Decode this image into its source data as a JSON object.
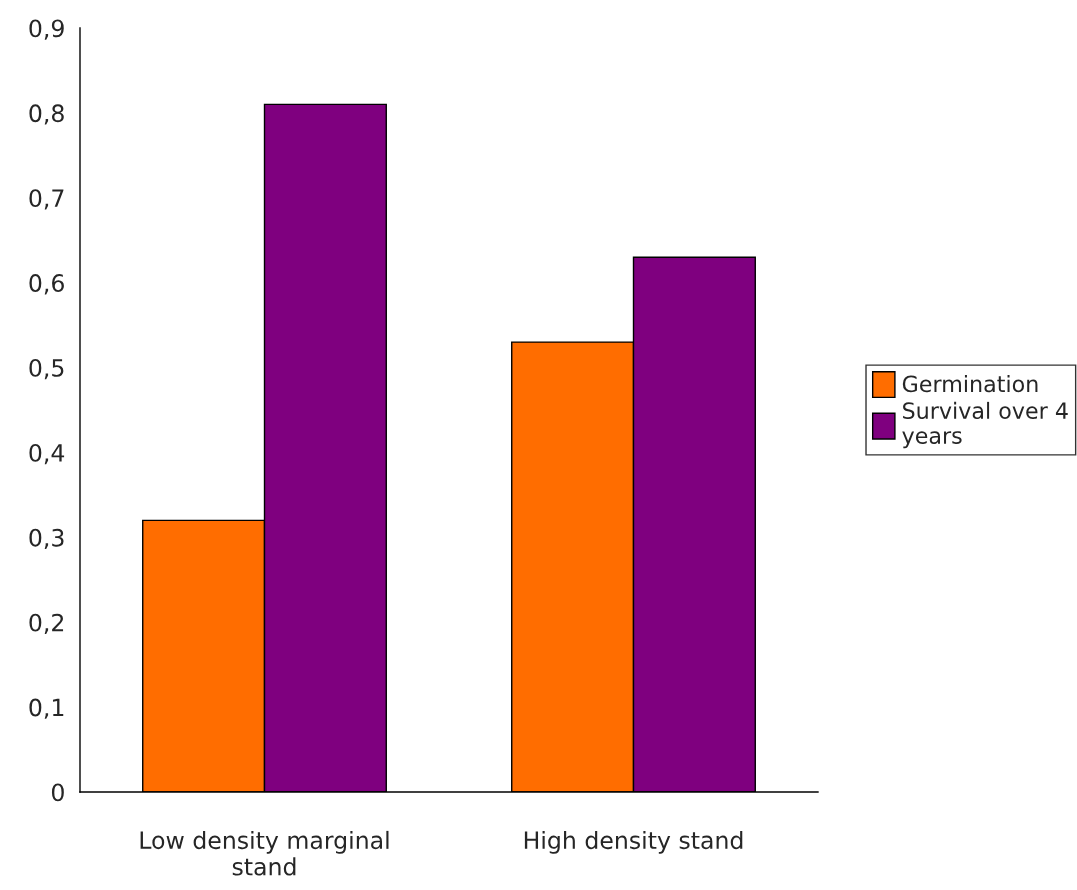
{
  "chart_data": {
    "type": "bar",
    "categories": [
      "Low density marginal stand",
      "High density stand"
    ],
    "series": [
      {
        "name": "Germination",
        "color": "#ff6d00",
        "values": [
          0.32,
          0.53
        ]
      },
      {
        "name": "Survival over 4 years",
        "color": "#7f007f",
        "values": [
          0.81,
          0.63
        ]
      }
    ],
    "ylim": [
      0,
      0.9
    ],
    "yticks": [
      0,
      {
        "value": 0.1,
        "label": "0,1"
      },
      {
        "value": 0.2,
        "label": "0,2"
      },
      {
        "value": 0.3,
        "label": "0,3"
      },
      {
        "value": 0.4,
        "label": "0,4"
      },
      {
        "value": 0.5,
        "label": "0,5"
      },
      {
        "value": 0.6,
        "label": "0,6"
      },
      {
        "value": 0.7,
        "label": "0,7"
      },
      {
        "value": 0.8,
        "label": "0,8"
      },
      {
        "value": 0.9,
        "label": "0,9"
      }
    ],
    "grid": false,
    "legend": "right"
  }
}
